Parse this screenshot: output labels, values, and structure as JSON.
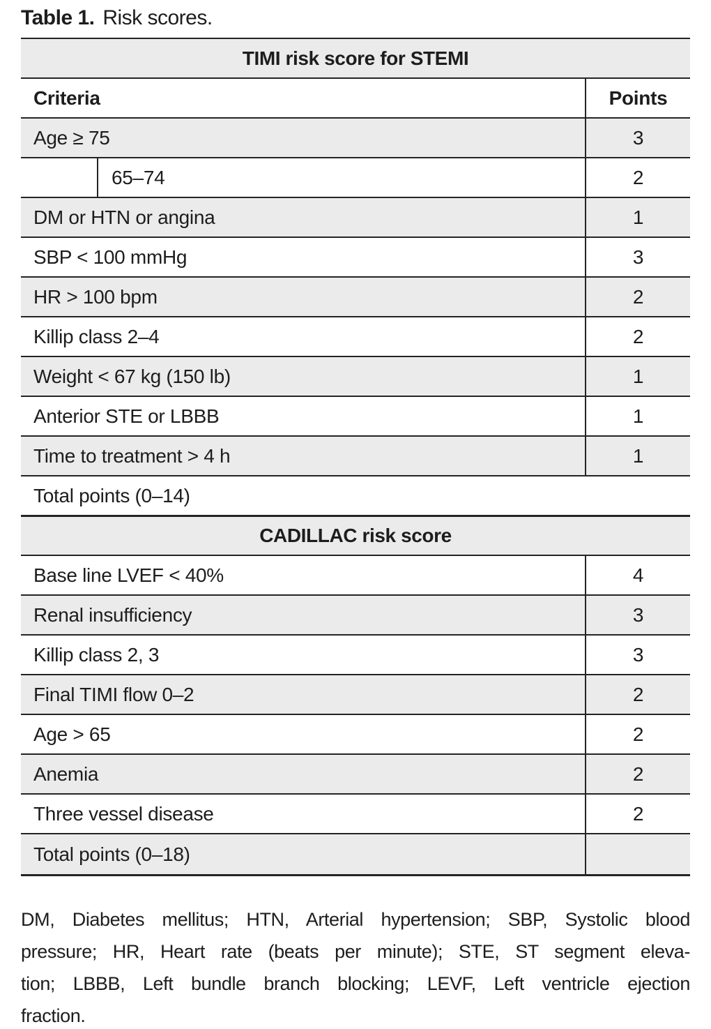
{
  "caption": {
    "label": "Table 1.",
    "text": "Risk scores."
  },
  "colors": {
    "row_shade": "#eaebea",
    "rule": "#242424",
    "text": "#1d1d1d",
    "background": "#ffffff"
  },
  "sections": [
    {
      "header": "TIMI risk score for STEMI",
      "col_headers": [
        "Criteria",
        "Points"
      ],
      "rows": [
        {
          "label": "Age ≥ 75",
          "points": "3",
          "shaded": true
        },
        {
          "label": "65–74",
          "points": "2",
          "shaded": false,
          "indent": true
        },
        {
          "label": "DM or HTN or angina",
          "points": "1",
          "shaded": true
        },
        {
          "label": "SBP < 100 mmHg",
          "points": "3",
          "shaded": false
        },
        {
          "label": "HR > 100 bpm",
          "points": "2",
          "shaded": true
        },
        {
          "label": "Killip class 2–4",
          "points": "2",
          "shaded": false
        },
        {
          "label": "Weight < 67 kg (150 lb)",
          "points": "1",
          "shaded": true
        },
        {
          "label": "Anterior STE or LBBB",
          "points": "1",
          "shaded": false
        },
        {
          "label": "Time to treatment > 4 h",
          "points": "1",
          "shaded": true
        },
        {
          "label": "Total points (0–14)",
          "points": "",
          "shaded": false,
          "divider": false
        }
      ]
    },
    {
      "header": "CADILLAC risk score",
      "rows": [
        {
          "label": "Base line LVEF < 40%",
          "points": "4",
          "shaded": false
        },
        {
          "label": "Renal insufficiency",
          "points": "3",
          "shaded": true
        },
        {
          "label": "Killip class 2, 3",
          "points": "3",
          "shaded": false
        },
        {
          "label": "Final TIMI flow 0–2",
          "points": "2",
          "shaded": true
        },
        {
          "label": "Age > 65",
          "points": "2",
          "shaded": false
        },
        {
          "label": "Anemia",
          "points": "2",
          "shaded": true
        },
        {
          "label": "Three vessel disease",
          "points": "2",
          "shaded": false
        },
        {
          "label": "Total points (0–18)",
          "points": "",
          "shaded": true
        }
      ]
    }
  ],
  "footnote": {
    "lines": [
      "DM, Diabetes mellitus; HTN, Arterial hypertension; SBP, Systolic blood",
      "pressure; HR, Heart rate (beats per minute); STE, ST segment eleva-",
      "tion; LBBB, Left bundle branch blocking; LEVF, Left ventricle ejection",
      "fraction."
    ]
  }
}
